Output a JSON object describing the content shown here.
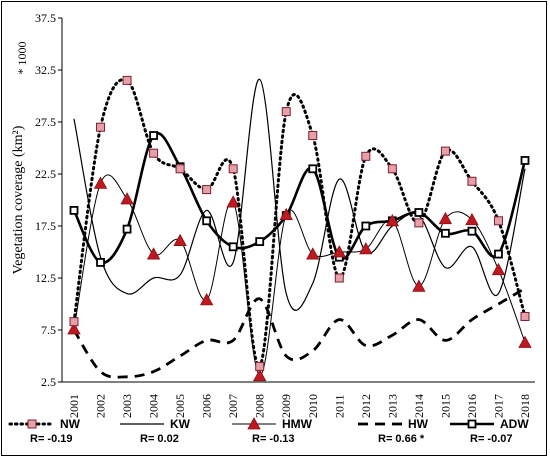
{
  "chart_data": {
    "type": "line",
    "ylabel": "Vegetation coverage (km²)",
    "y_multiplier": "* 1000",
    "ylim": [
      2.5,
      37.5
    ],
    "yticks": [
      "2.5",
      "7.5",
      "12.5",
      "17.5",
      "22.5",
      "27.5",
      "32.5",
      "37.5"
    ],
    "x": [
      "2001",
      "2002",
      "2003",
      "2004",
      "2005",
      "2006",
      "2007",
      "2008",
      "2009",
      "2010",
      "2011",
      "2012",
      "2013",
      "2014",
      "2015",
      "2016",
      "2017",
      "2018"
    ],
    "grid": false,
    "legend_placement": "bottom",
    "series": [
      {
        "name": "NW",
        "r_label": "R= -0.19",
        "style": "dotted-square",
        "values": [
          8.3,
          27.0,
          31.5,
          24.5,
          23.0,
          21.0,
          23.0,
          4.0,
          28.5,
          26.2,
          12.5,
          24.2,
          23.0,
          17.8,
          24.7,
          21.8,
          18.0,
          8.8
        ]
      },
      {
        "name": "KW",
        "r_label": "R= 0.02",
        "style": "solid",
        "values": [
          27.8,
          14.5,
          11.0,
          12.5,
          12.8,
          19.0,
          14.0,
          31.6,
          11.0,
          12.0,
          22.0,
          15.0,
          17.5,
          18.5,
          13.5,
          15.5,
          11.0,
          23.0
        ]
      },
      {
        "name": "HMW",
        "r_label": "R= -0.13",
        "style": "thin-triangle",
        "values": [
          7.6,
          21.6,
          20.1,
          14.8,
          16.1,
          10.4,
          19.8,
          3.1,
          18.6,
          14.8,
          15.0,
          15.3,
          18.0,
          11.7,
          18.2,
          18.1,
          13.3,
          6.3
        ]
      },
      {
        "name": "HW",
        "r_label": "R= 0.66 *",
        "style": "dashed",
        "values": [
          7.5,
          3.5,
          3.0,
          3.5,
          5.0,
          6.5,
          6.5,
          10.5,
          5.0,
          5.5,
          8.5,
          6.0,
          7.0,
          8.5,
          6.5,
          8.5,
          10.0,
          11.5
        ]
      },
      {
        "name": "ADW",
        "r_label": "R= -0.07",
        "style": "thick-square",
        "values": [
          19.0,
          14.0,
          17.2,
          26.2,
          23.2,
          18.0,
          15.5,
          16.0,
          18.5,
          23.0,
          14.5,
          17.5,
          18.0,
          18.8,
          16.8,
          17.0,
          14.8,
          23.8
        ]
      }
    ],
    "colors": {
      "marker_fill": "#e8a0a8",
      "marker_edge": "#c0181f",
      "line": "#000000"
    }
  }
}
